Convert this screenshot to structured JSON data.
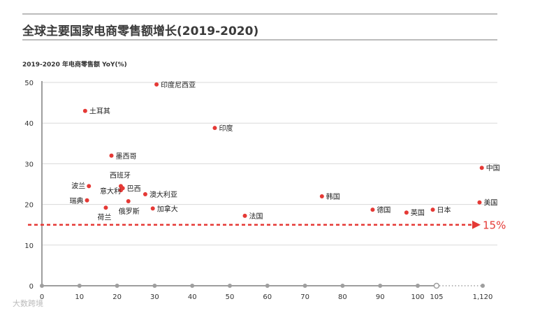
{
  "header": {
    "title": "全球主要国家电商零售额增长(2019-2020)"
  },
  "watermark": "大数跨境",
  "colors": {
    "point": "#e53935",
    "reference": "#e53935",
    "axis": "#9e9e9e",
    "grid": "#d9d9d9",
    "title_rule": "#7a7a7a"
  },
  "chart_data": {
    "type": "scatter",
    "title": "全球主要国家电商零售额增长(2019-2020)",
    "ylabel": "2019-2020 年电商零售额 YoY(%)",
    "xlabel": "",
    "ylim": [
      0,
      50
    ],
    "y_ticks": [
      "0",
      "10",
      "20",
      "30",
      "40",
      "50"
    ],
    "x_ticks": [
      "0",
      "10",
      "20",
      "30",
      "40",
      "50",
      "60",
      "70",
      "80",
      "90",
      "100",
      "105",
      "1,120"
    ],
    "x_axis_break": "105 → 1,120",
    "grid": "horizontal",
    "reference_line": {
      "y": 15,
      "label": "15%"
    },
    "points": [
      {
        "name": "印度尼西亚",
        "x": 30.5,
        "y": 49.5
      },
      {
        "name": "土耳其",
        "x": 11.5,
        "y": 43
      },
      {
        "name": "印度",
        "x": 46,
        "y": 38.8
      },
      {
        "name": "墨西哥",
        "x": 18.5,
        "y": 32
      },
      {
        "name": "中国",
        "x": 1100,
        "y": 29
      },
      {
        "name": "西班牙",
        "x": 21,
        "y": 24.5
      },
      {
        "name": "波兰",
        "x": 12.5,
        "y": 24.5
      },
      {
        "name": "意大利",
        "x": 21,
        "y": 23.5
      },
      {
        "name": "巴西",
        "x": 21.5,
        "y": 24
      },
      {
        "name": "澳大利亚",
        "x": 27.5,
        "y": 22.5
      },
      {
        "name": "韩国",
        "x": 74.5,
        "y": 22
      },
      {
        "name": "瑞典",
        "x": 12,
        "y": 21
      },
      {
        "name": "美国",
        "x": 1050,
        "y": 20.5
      },
      {
        "name": "荷兰",
        "x": 17,
        "y": 19.2
      },
      {
        "name": "俄罗斯",
        "x": 23,
        "y": 20.8
      },
      {
        "name": "加拿大",
        "x": 29.5,
        "y": 19
      },
      {
        "name": "德国",
        "x": 88,
        "y": 18.7
      },
      {
        "name": "日本",
        "x": 104,
        "y": 18.7
      },
      {
        "name": "英国",
        "x": 97,
        "y": 18
      },
      {
        "name": "法国",
        "x": 54,
        "y": 17.2
      }
    ]
  }
}
